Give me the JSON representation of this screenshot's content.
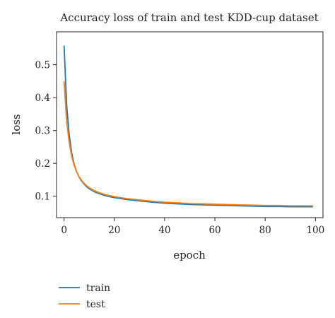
{
  "chart_data": {
    "type": "line",
    "title": "Accuracy loss of train and test KDD-cup dataset",
    "xlabel": "epoch",
    "ylabel": "loss",
    "xlim": [
      -3,
      103
    ],
    "ylim": [
      0.035,
      0.6
    ],
    "xticks": [
      0,
      20,
      40,
      60,
      80,
      100
    ],
    "xtick_labels": [
      "0",
      "20",
      "40",
      "60",
      "80",
      "100"
    ],
    "yticks": [
      0.1,
      0.2,
      0.3,
      0.4,
      0.5
    ],
    "ytick_labels": [
      "0.1",
      "0.2",
      "0.3",
      "0.4",
      "0.5"
    ],
    "grid": false,
    "legend_position": "bottom-left, below plot",
    "x": [
      0,
      1,
      2,
      3,
      4,
      5,
      6,
      7,
      8,
      9,
      10,
      12,
      14,
      16,
      18,
      20,
      25,
      30,
      35,
      40,
      45,
      50,
      55,
      60,
      65,
      70,
      75,
      80,
      85,
      90,
      95,
      99
    ],
    "series": [
      {
        "name": "train",
        "color": "#1f77b4",
        "values": [
          0.558,
          0.38,
          0.29,
          0.232,
          0.198,
          0.175,
          0.158,
          0.146,
          0.137,
          0.129,
          0.123,
          0.114,
          0.108,
          0.103,
          0.099,
          0.096,
          0.09,
          0.086,
          0.082,
          0.079,
          0.077,
          0.075,
          0.074,
          0.073,
          0.072,
          0.071,
          0.07,
          0.069,
          0.069,
          0.068,
          0.068,
          0.068
        ]
      },
      {
        "name": "test",
        "color": "#ff7f0e",
        "values": [
          0.45,
          0.33,
          0.265,
          0.222,
          0.194,
          0.174,
          0.159,
          0.148,
          0.139,
          0.132,
          0.126,
          0.117,
          0.111,
          0.106,
          0.102,
          0.099,
          0.093,
          0.089,
          0.085,
          0.082,
          0.08,
          0.078,
          0.077,
          0.076,
          0.075,
          0.074,
          0.073,
          0.072,
          0.072,
          0.071,
          0.071,
          0.071
        ]
      }
    ]
  }
}
